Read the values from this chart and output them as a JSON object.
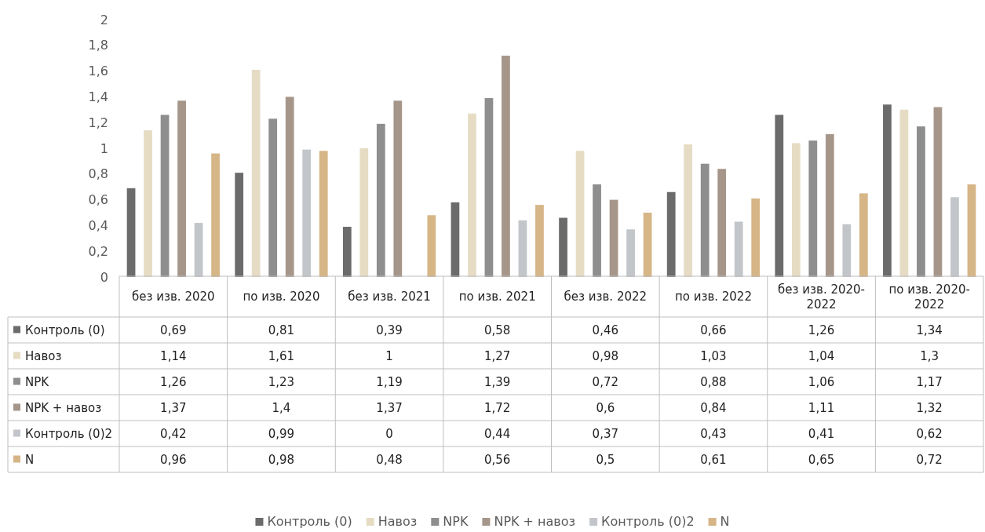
{
  "chart_data": {
    "type": "bar",
    "categories": [
      "без изв. 2020",
      "по изв. 2020",
      "без изв. 2021",
      "по изв. 2021",
      "без изв. 2022",
      "по изв. 2022",
      "без изв. 2020-2022",
      "по изв. 2020-2022"
    ],
    "series": [
      {
        "name": "Контроль (0)",
        "color": "#6b6b6b",
        "values": [
          0.69,
          0.81,
          0.39,
          0.58,
          0.46,
          0.66,
          1.26,
          1.34
        ],
        "value_labels": [
          "0,69",
          "0,81",
          "0,39",
          "0,58",
          "0,46",
          "0,66",
          "1,26",
          "1,34"
        ]
      },
      {
        "name": "Навоз",
        "color": "#e6dcc4",
        "values": [
          1.14,
          1.61,
          1,
          1.27,
          0.98,
          1.03,
          1.04,
          1.3
        ],
        "value_labels": [
          "1,14",
          "1,61",
          "1",
          "1,27",
          "0,98",
          "1,03",
          "1,04",
          "1,3"
        ]
      },
      {
        "name": "NPK",
        "color": "#8e8e8e",
        "values": [
          1.26,
          1.23,
          1.19,
          1.39,
          0.72,
          0.88,
          1.06,
          1.17
        ],
        "value_labels": [
          "1,26",
          "1,23",
          "1,19",
          "1,39",
          "0,72",
          "0,88",
          "1,06",
          "1,17"
        ]
      },
      {
        "name": "NPK + навоз",
        "color": "#a6968a",
        "values": [
          1.37,
          1.4,
          1.37,
          1.72,
          0.6,
          0.84,
          1.11,
          1.32
        ],
        "value_labels": [
          "1,37",
          "1,4",
          "1,37",
          "1,72",
          "0,6",
          "0,84",
          "1,11",
          "1,32"
        ]
      },
      {
        "name": "Контроль (0)2",
        "color": "#c2c5c9",
        "values": [
          0.42,
          0.99,
          0,
          0.44,
          0.37,
          0.43,
          0.41,
          0.62
        ],
        "value_labels": [
          "0,42",
          "0,99",
          "0",
          "0,44",
          "0,37",
          "0,43",
          "0,41",
          "0,62"
        ]
      },
      {
        "name": "N",
        "color": "#d6b586",
        "values": [
          0.96,
          0.98,
          0.48,
          0.56,
          0.5,
          0.61,
          0.65,
          0.72
        ],
        "value_labels": [
          "0,96",
          "0,98",
          "0,48",
          "0,56",
          "0,5",
          "0,61",
          "0,65",
          "0,72"
        ]
      }
    ],
    "ylim": [
      0,
      2
    ],
    "yticks": [
      0,
      {
        "value": 0.2,
        "label": "0,2"
      },
      {
        "value": 0.4,
        "label": "0,4"
      },
      {
        "value": 0.6,
        "label": "0,6"
      },
      {
        "value": 0.8,
        "label": "0,8"
      },
      1,
      {
        "value": 1.2,
        "label": "1,2"
      },
      {
        "value": 1.4,
        "label": "1,4"
      },
      {
        "value": 1.6,
        "label": "1,6"
      },
      {
        "value": 1.8,
        "label": "1,8"
      },
      2
    ],
    "legend": "bottom"
  }
}
